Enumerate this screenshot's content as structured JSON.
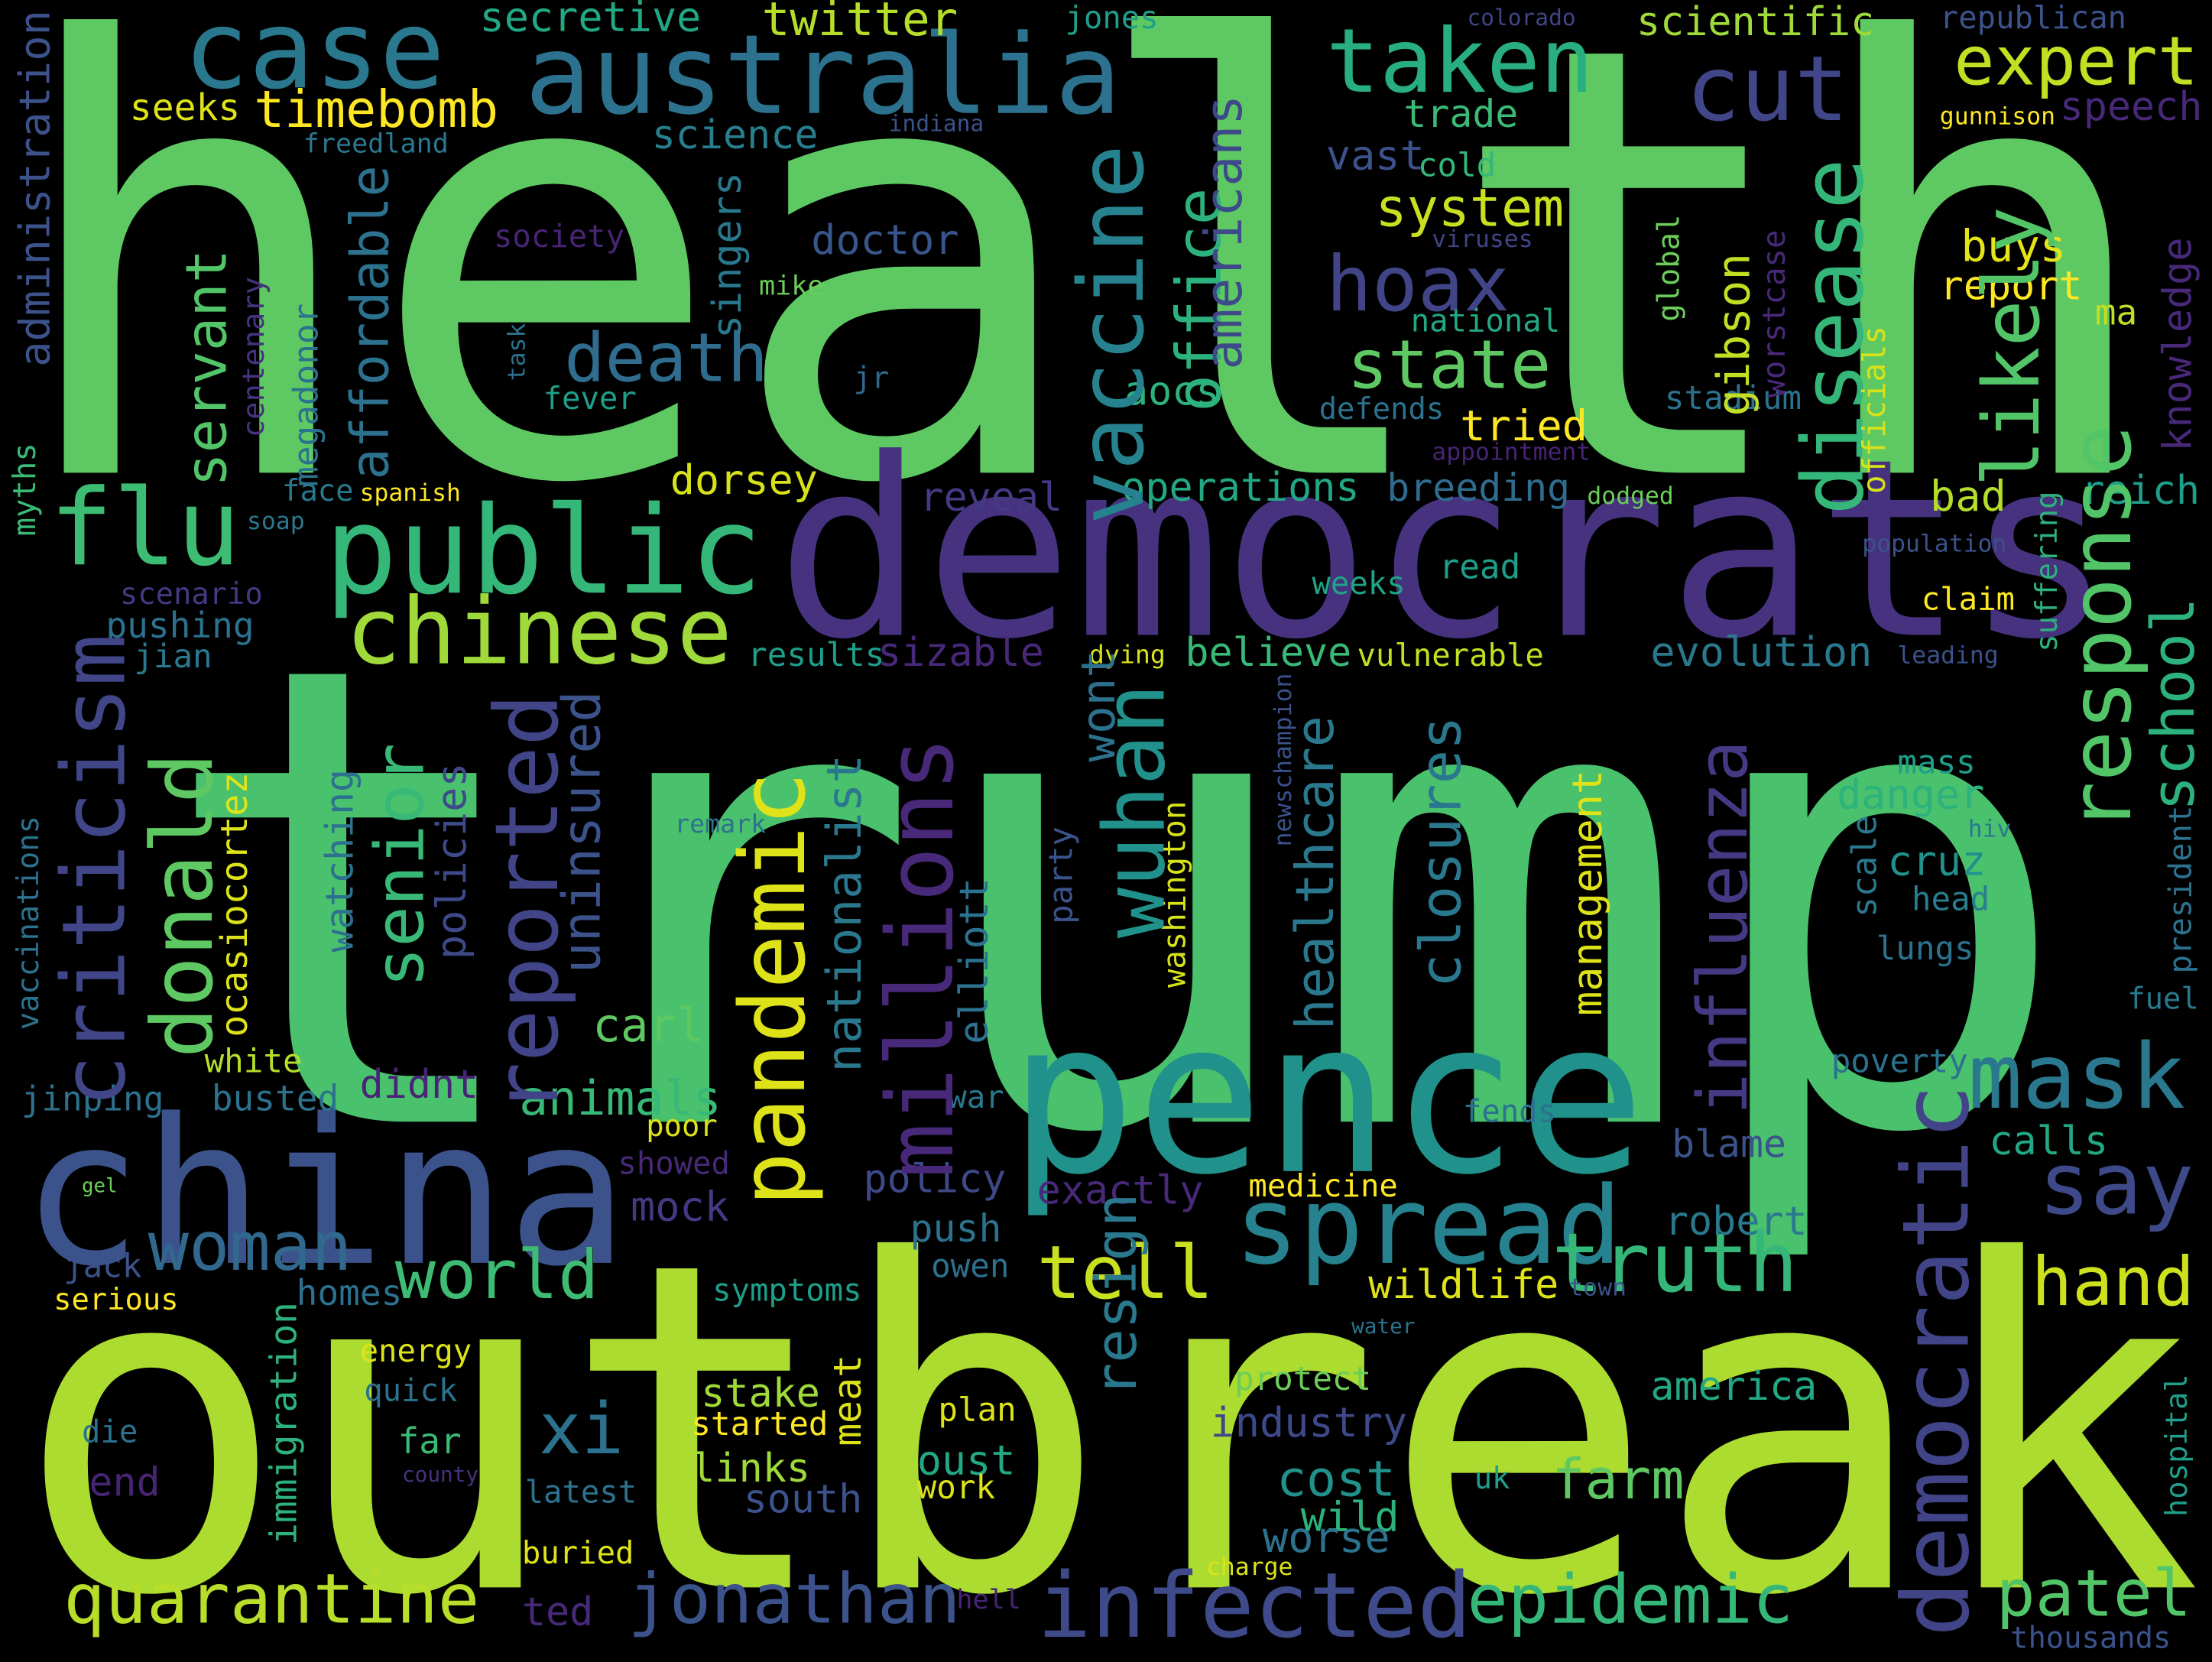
{
  "words": [
    "health",
    "trump",
    "outbreak",
    "democrats",
    "china",
    "pence",
    "public",
    "spread",
    "infected",
    "quarantine",
    "jonathan",
    "epidemic",
    "patel",
    "truth",
    "tell",
    "world",
    "woman",
    "hand",
    "say",
    "mask",
    "xi",
    "case",
    "australia",
    "taken",
    "cut",
    "expert",
    "hoax",
    "state",
    "death",
    "doctor",
    "chinese",
    "flu",
    "system",
    "trade",
    "scientific",
    "republican",
    "timebomb",
    "seeks",
    "secretive",
    "twitter",
    "jones",
    "colorado",
    "freedland",
    "science",
    "indiana",
    "gunnison",
    "speech",
    "vast",
    "cold",
    "society",
    "viruses",
    "mike",
    "buys",
    "report",
    "ma",
    "national",
    "fever",
    "jr",
    "aocs",
    "stadium",
    "defends",
    "tried",
    "appointment",
    "dorsey",
    "face",
    "spanish",
    "soap",
    "reveal",
    "operations",
    "breeding",
    "dodged",
    "bad",
    "reich",
    "population",
    "read",
    "weeks",
    "claim",
    "scenario",
    "pushing",
    "jian",
    "results",
    "sizable",
    "dying",
    "believe",
    "vulnerable",
    "evolution",
    "leading",
    "mass",
    "danger",
    "cruz",
    "hiv",
    "head",
    "lungs",
    "fuel",
    "remark",
    "white",
    "jinping",
    "busted",
    "didnt",
    "carl",
    "animals",
    "war",
    "poverty",
    "poor",
    "showed",
    "fends",
    "calls",
    "blame",
    "gel",
    "policy",
    "exactly",
    "medicine",
    "mock",
    "robert",
    "push",
    "owen",
    "jack",
    "serious",
    "homes",
    "symptoms",
    "wildlife",
    "town",
    "water",
    "energy",
    "quick",
    "protect",
    "america",
    "far",
    "die",
    "stake",
    "started",
    "plan",
    "industry",
    "links",
    "oust",
    "cost",
    "farm",
    "end",
    "county",
    "latest",
    "south",
    "work",
    "uk",
    "wild",
    "worse",
    "buried",
    "charge",
    "ted",
    "hell",
    "thousands",
    "vaccine",
    "office",
    "americans",
    "disease",
    "likely",
    "response",
    "school",
    "knowledge",
    "suffering",
    "officials",
    "worstcase",
    "global",
    "gibson",
    "democratic",
    "influenza",
    "closures",
    "healthcare",
    "management",
    "elliott",
    "washington",
    "newschampion",
    "party",
    "wont",
    "wuhan",
    "millions",
    "nationalist",
    "pandemic",
    "uninsured",
    "reported",
    "senior",
    "policies",
    "ocasiocortez",
    "watching",
    "donald",
    "criticism",
    "vaccinations",
    "myths",
    "administration",
    "servant",
    "affordable",
    "megadonor",
    "centenary",
    "task",
    "singers",
    "resign",
    "meat",
    "immigration",
    "scale",
    "president",
    "hospital"
  ]
}
